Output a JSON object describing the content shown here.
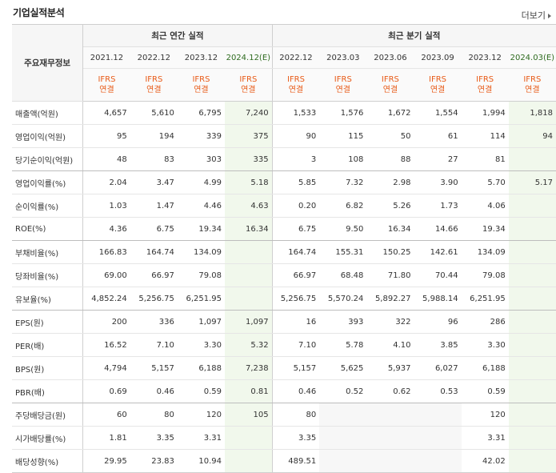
{
  "header": {
    "title": "기업실적분석",
    "more_label": "더보기"
  },
  "table": {
    "row_header_label": "주요재무정보",
    "annual_group_label": "최근 연간 실적",
    "quarter_group_label": "최근 분기 실적",
    "ifrs_top": "IFRS",
    "ifrs_bottom": "연결",
    "periods": [
      "2021.12",
      "2022.12",
      "2023.12",
      "2024.12(E)",
      "2022.12",
      "2023.03",
      "2023.06",
      "2023.09",
      "2023.12",
      "2024.03(E)"
    ],
    "rows": [
      {
        "label": "매출액(억원)",
        "values": [
          "4,657",
          "5,610",
          "6,795",
          "7,240",
          "1,533",
          "1,576",
          "1,672",
          "1,554",
          "1,994",
          "1,818"
        ]
      },
      {
        "label": "영업이익(억원)",
        "values": [
          "95",
          "194",
          "339",
          "375",
          "90",
          "115",
          "50",
          "61",
          "114",
          "94"
        ]
      },
      {
        "label": "당기순이익(억원)",
        "values": [
          "48",
          "83",
          "303",
          "335",
          "3",
          "108",
          "88",
          "27",
          "81",
          ""
        ]
      },
      {
        "label": "영업이익률(%)",
        "values": [
          "2.04",
          "3.47",
          "4.99",
          "5.18",
          "5.85",
          "7.32",
          "2.98",
          "3.90",
          "5.70",
          "5.17"
        ]
      },
      {
        "label": "순이익률(%)",
        "values": [
          "1.03",
          "1.47",
          "4.46",
          "4.63",
          "0.20",
          "6.82",
          "5.26",
          "1.73",
          "4.06",
          ""
        ]
      },
      {
        "label": "ROE(%)",
        "values": [
          "4.36",
          "6.75",
          "19.34",
          "16.34",
          "6.75",
          "9.50",
          "16.34",
          "14.66",
          "19.34",
          ""
        ]
      },
      {
        "label": "부채비율(%)",
        "values": [
          "166.83",
          "164.74",
          "134.09",
          "",
          "164.74",
          "155.31",
          "150.25",
          "142.61",
          "134.09",
          ""
        ]
      },
      {
        "label": "당좌비율(%)",
        "values": [
          "69.00",
          "66.97",
          "79.08",
          "",
          "66.97",
          "68.48",
          "71.80",
          "70.44",
          "79.08",
          ""
        ]
      },
      {
        "label": "유보율(%)",
        "values": [
          "4,852.24",
          "5,256.75",
          "6,251.95",
          "",
          "5,256.75",
          "5,570.24",
          "5,892.27",
          "5,988.14",
          "6,251.95",
          ""
        ]
      },
      {
        "label": "EPS(원)",
        "values": [
          "200",
          "336",
          "1,097",
          "1,097",
          "16",
          "393",
          "322",
          "96",
          "286",
          ""
        ]
      },
      {
        "label": "PER(배)",
        "values": [
          "16.52",
          "7.10",
          "3.30",
          "5.32",
          "7.10",
          "5.78",
          "4.10",
          "3.85",
          "3.30",
          ""
        ]
      },
      {
        "label": "BPS(원)",
        "values": [
          "4,794",
          "5,157",
          "6,188",
          "7,238",
          "5,157",
          "5,625",
          "5,937",
          "6,027",
          "6,188",
          ""
        ]
      },
      {
        "label": "PBR(배)",
        "values": [
          "0.69",
          "0.46",
          "0.59",
          "0.81",
          "0.46",
          "0.52",
          "0.62",
          "0.53",
          "0.59",
          ""
        ]
      },
      {
        "label": "주당배당금(원)",
        "values": [
          "60",
          "80",
          "120",
          "105",
          "80",
          "",
          "",
          "",
          "120",
          ""
        ]
      },
      {
        "label": "시가배당률(%)",
        "values": [
          "1.81",
          "3.35",
          "3.31",
          "",
          "3.35",
          "",
          "",
          "",
          "3.31",
          ""
        ]
      },
      {
        "label": "배당성향(%)",
        "values": [
          "29.95",
          "23.83",
          "10.94",
          "",
          "489.51",
          "",
          "",
          "",
          "42.02",
          ""
        ]
      }
    ]
  },
  "colors": {
    "ifrs": "#e85b18",
    "estimate_bg": "#f1f8ec",
    "header_bg": "#f6f6f6"
  }
}
